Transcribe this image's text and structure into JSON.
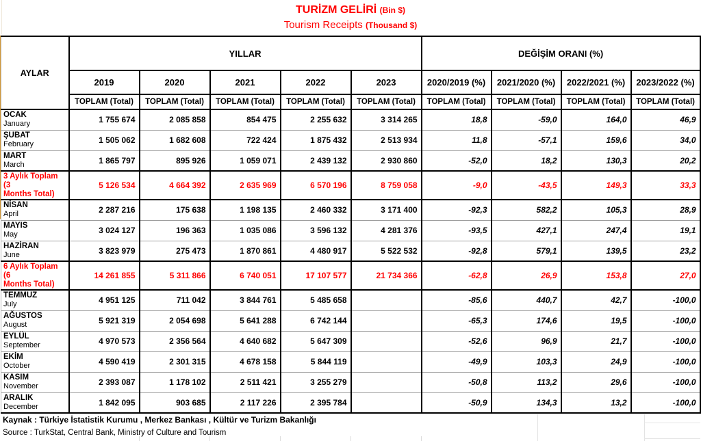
{
  "title": {
    "tr_main": "TURİZM GELİRİ",
    "tr_unit": "(Bin $)",
    "en_main": "Tourism Receipts",
    "en_unit": "(Thousand $)"
  },
  "header": {
    "aylar": "AYLAR",
    "yillar": "YILLAR",
    "degisim": "DEĞİŞİM ORANI (%)",
    "years": [
      "2019",
      "2020",
      "2021",
      "2022",
      "2023"
    ],
    "change_cols": [
      "2020/2019 (%)",
      "2021/2020 (%)",
      "2022/2021 (%)",
      "2023/2022 (%)"
    ],
    "toplam": "TOPLAM  (Total)"
  },
  "rows": [
    {
      "type": "month",
      "tr": "OCAK",
      "en": "January",
      "values": [
        "1 755 674",
        "2 085 858",
        "854 475",
        "2 255 632",
        "3 314 265"
      ],
      "changes": [
        "18,8",
        "-59,0",
        "164,0",
        "46,9"
      ]
    },
    {
      "type": "month",
      "tr": "ŞUBAT",
      "en": "February",
      "values": [
        "1 505 062",
        "1 682 608",
        "722 424",
        "1 875 432",
        "2 513 934"
      ],
      "changes": [
        "11,8",
        "-57,1",
        "159,6",
        "34,0"
      ]
    },
    {
      "type": "month",
      "tr": "MART",
      "en": "March",
      "values": [
        "1 865 797",
        "895 926",
        "1 059 071",
        "2 439 132",
        "2 930 860"
      ],
      "changes": [
        "-52,0",
        "18,2",
        "130,3",
        "20,2"
      ]
    },
    {
      "type": "total",
      "tr": "3 Aylık Toplam (3",
      "en": "Months Total)",
      "values": [
        "5 126 534",
        "4 664 392",
        "2 635 969",
        "6 570 196",
        "8 759 058"
      ],
      "changes": [
        "-9,0",
        "-43,5",
        "149,3",
        "33,3"
      ]
    },
    {
      "type": "month",
      "tr": "NİSAN",
      "en": "April",
      "values": [
        "2 287 216",
        "175 638",
        "1 198 135",
        "2 460 332",
        "3 171 400"
      ],
      "changes": [
        "-92,3",
        "582,2",
        "105,3",
        "28,9"
      ]
    },
    {
      "type": "month",
      "tr": "MAYIS",
      "en": "May",
      "values": [
        "3 024 127",
        "196 363",
        "1 035 086",
        "3 596 132",
        "4 281 376"
      ],
      "changes": [
        "-93,5",
        "427,1",
        "247,4",
        "19,1"
      ]
    },
    {
      "type": "month",
      "tr": "HAZİRAN",
      "en": "June",
      "values": [
        "3 823 979",
        "275 473",
        "1 870 861",
        "4 480 917",
        "5 522 532"
      ],
      "changes": [
        "-92,8",
        "579,1",
        "139,5",
        "23,2"
      ]
    },
    {
      "type": "total",
      "tr": "6 Aylık Toplam (6",
      "en": "Months Total)",
      "values": [
        "14 261 855",
        "5 311 866",
        "6 740 051",
        "17 107 577",
        "21 734 366"
      ],
      "changes": [
        "-62,8",
        "26,9",
        "153,8",
        "27,0"
      ]
    },
    {
      "type": "month",
      "tr": "TEMMUZ",
      "en": "July",
      "values": [
        "4 951 125",
        "711 042",
        "3 844 761",
        "5 485 658",
        ""
      ],
      "changes": [
        "-85,6",
        "440,7",
        "42,7",
        "-100,0"
      ]
    },
    {
      "type": "month",
      "tr": "AĞUSTOS",
      "en": "August",
      "values": [
        "5 921 319",
        "2 054 698",
        "5 641 288",
        "6 742 144",
        ""
      ],
      "changes": [
        "-65,3",
        "174,6",
        "19,5",
        "-100,0"
      ]
    },
    {
      "type": "month",
      "tr": "EYLÜL",
      "en": "September",
      "values": [
        "4 970 573",
        "2 356 564",
        "4 640 682",
        "5 647 309",
        ""
      ],
      "changes": [
        "-52,6",
        "96,9",
        "21,7",
        "-100,0"
      ]
    },
    {
      "type": "month",
      "tr": "EKİM",
      "en": "October",
      "values": [
        "4 590 419",
        "2 301 315",
        "4 678 158",
        "5 844 119",
        ""
      ],
      "changes": [
        "-49,9",
        "103,3",
        "24,9",
        "-100,0"
      ]
    },
    {
      "type": "month",
      "tr": "KASIM",
      "en": "November",
      "values": [
        "2 393 087",
        "1 178 102",
        "2 511 421",
        "3 255 279",
        ""
      ],
      "changes": [
        "-50,8",
        "113,2",
        "29,6",
        "-100,0"
      ]
    },
    {
      "type": "month",
      "tr": "ARALIK",
      "en": "December",
      "values": [
        "1 842 095",
        "903 685",
        "2 117 226",
        "2 395 784",
        ""
      ],
      "changes": [
        "-50,9",
        "134,3",
        "13,2",
        "-100,0"
      ]
    }
  ],
  "footer": {
    "kaynak": "Kaynak : Türkiye İstatistik Kurumu , Merkez Bankası , Kültür ve Turizm Bakanlığı",
    "source": "Source : TurkStat, Central Bank, Ministry of Culture and Tourism"
  },
  "colors": {
    "accent_red": "#FF0000",
    "left_edge_accent": "#D49A3A",
    "row_divider_gray": "#9E9E9E"
  }
}
